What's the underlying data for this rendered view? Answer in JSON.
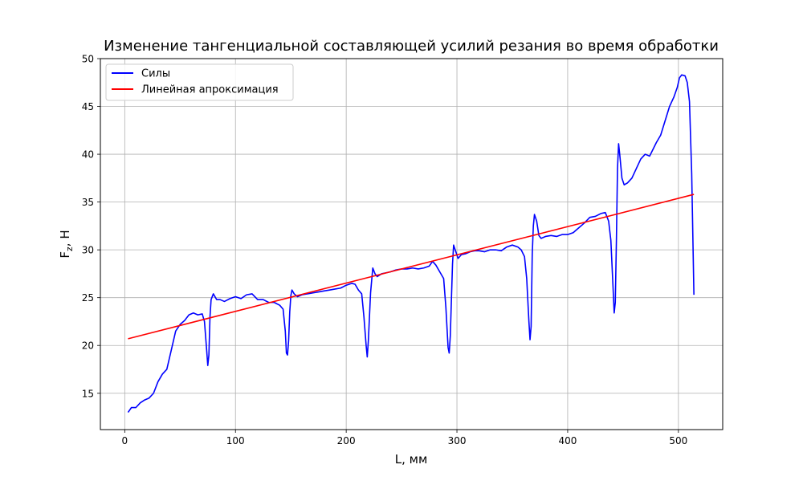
{
  "chart_data": {
    "type": "line",
    "title": "Изменение тангенциальной составляющей усилий резания во время обработки",
    "xlabel": "L, мм",
    "ylabel": {
      "base": "F",
      "sub": "z",
      "rest": ", Н"
    },
    "xlim": [
      -22,
      540
    ],
    "ylim": [
      11.2,
      50
    ],
    "xticks": [
      0,
      100,
      200,
      300,
      400,
      500
    ],
    "yticks": [
      15,
      20,
      25,
      30,
      35,
      40,
      45,
      50
    ],
    "grid": true,
    "legend_position": "top-left",
    "series": [
      {
        "name": "Силы",
        "color": "#0000ff",
        "points": [
          [
            3,
            13.0
          ],
          [
            6,
            13.5
          ],
          [
            10,
            13.5
          ],
          [
            14,
            14.0
          ],
          [
            18,
            14.3
          ],
          [
            22,
            14.5
          ],
          [
            26,
            15.0
          ],
          [
            30,
            16.2
          ],
          [
            34,
            17.0
          ],
          [
            38,
            17.5
          ],
          [
            42,
            19.5
          ],
          [
            46,
            21.5
          ],
          [
            50,
            22.2
          ],
          [
            54,
            22.6
          ],
          [
            58,
            23.2
          ],
          [
            62,
            23.4
          ],
          [
            66,
            23.2
          ],
          [
            70,
            23.3
          ],
          [
            72,
            22.5
          ],
          [
            74,
            19.5
          ],
          [
            75,
            17.9
          ],
          [
            76,
            19.0
          ],
          [
            77,
            23.0
          ],
          [
            78,
            24.8
          ],
          [
            80,
            25.4
          ],
          [
            83,
            24.8
          ],
          [
            86,
            24.8
          ],
          [
            90,
            24.6
          ],
          [
            95,
            24.9
          ],
          [
            100,
            25.1
          ],
          [
            105,
            24.9
          ],
          [
            110,
            25.3
          ],
          [
            115,
            25.4
          ],
          [
            120,
            24.8
          ],
          [
            125,
            24.8
          ],
          [
            130,
            24.5
          ],
          [
            135,
            24.5
          ],
          [
            140,
            24.2
          ],
          [
            143,
            23.8
          ],
          [
            145,
            21.5
          ],
          [
            146,
            19.2
          ],
          [
            147,
            19.0
          ],
          [
            148,
            20.5
          ],
          [
            149,
            23.5
          ],
          [
            150,
            25.2
          ],
          [
            151,
            25.8
          ],
          [
            153,
            25.4
          ],
          [
            156,
            25.1
          ],
          [
            160,
            25.3
          ],
          [
            165,
            25.4
          ],
          [
            170,
            25.5
          ],
          [
            175,
            25.6
          ],
          [
            180,
            25.7
          ],
          [
            185,
            25.8
          ],
          [
            190,
            25.9
          ],
          [
            195,
            26.0
          ],
          [
            200,
            26.3
          ],
          [
            205,
            26.5
          ],
          [
            208,
            26.4
          ],
          [
            211,
            25.8
          ],
          [
            214,
            25.4
          ],
          [
            216,
            23.0
          ],
          [
            218,
            20.0
          ],
          [
            219,
            18.8
          ],
          [
            220,
            20.5
          ],
          [
            222,
            25.5
          ],
          [
            224,
            28.1
          ],
          [
            226,
            27.5
          ],
          [
            228,
            27.2
          ],
          [
            232,
            27.5
          ],
          [
            236,
            27.6
          ],
          [
            240,
            27.7
          ],
          [
            245,
            27.9
          ],
          [
            250,
            28.0
          ],
          [
            255,
            28.0
          ],
          [
            260,
            28.1
          ],
          [
            265,
            28.0
          ],
          [
            270,
            28.1
          ],
          [
            275,
            28.3
          ],
          [
            278,
            28.8
          ],
          [
            281,
            28.4
          ],
          [
            285,
            27.6
          ],
          [
            288,
            27.0
          ],
          [
            290,
            24.0
          ],
          [
            292,
            19.8
          ],
          [
            293,
            19.2
          ],
          [
            294,
            21.0
          ],
          [
            296,
            28.5
          ],
          [
            297,
            30.5
          ],
          [
            299,
            29.8
          ],
          [
            301,
            29.1
          ],
          [
            304,
            29.5
          ],
          [
            308,
            29.6
          ],
          [
            312,
            29.8
          ],
          [
            316,
            29.9
          ],
          [
            320,
            29.9
          ],
          [
            325,
            29.8
          ],
          [
            330,
            30.0
          ],
          [
            335,
            30.0
          ],
          [
            340,
            29.9
          ],
          [
            345,
            30.3
          ],
          [
            350,
            30.5
          ],
          [
            355,
            30.3
          ],
          [
            358,
            30.0
          ],
          [
            361,
            29.3
          ],
          [
            363,
            27.0
          ],
          [
            365,
            22.5
          ],
          [
            366,
            20.6
          ],
          [
            367,
            22.0
          ],
          [
            368,
            29.5
          ],
          [
            369,
            32.5
          ],
          [
            370,
            33.7
          ],
          [
            372,
            33.0
          ],
          [
            374,
            31.5
          ],
          [
            376,
            31.2
          ],
          [
            380,
            31.4
          ],
          [
            385,
            31.5
          ],
          [
            390,
            31.4
          ],
          [
            395,
            31.6
          ],
          [
            400,
            31.6
          ],
          [
            405,
            31.8
          ],
          [
            410,
            32.3
          ],
          [
            415,
            32.8
          ],
          [
            420,
            33.4
          ],
          [
            425,
            33.5
          ],
          [
            430,
            33.8
          ],
          [
            434,
            33.9
          ],
          [
            437,
            33.0
          ],
          [
            439,
            31.0
          ],
          [
            441,
            26.0
          ],
          [
            442,
            23.4
          ],
          [
            443,
            24.5
          ],
          [
            444,
            31.0
          ],
          [
            445,
            38.5
          ],
          [
            446,
            41.1
          ],
          [
            447,
            40.0
          ],
          [
            449,
            37.5
          ],
          [
            451,
            36.8
          ],
          [
            454,
            37.0
          ],
          [
            458,
            37.5
          ],
          [
            462,
            38.5
          ],
          [
            466,
            39.5
          ],
          [
            470,
            40.0
          ],
          [
            474,
            39.8
          ],
          [
            477,
            40.5
          ],
          [
            480,
            41.2
          ],
          [
            484,
            42.0
          ],
          [
            488,
            43.5
          ],
          [
            492,
            45.0
          ],
          [
            496,
            46.0
          ],
          [
            499,
            47.0
          ],
          [
            501,
            48.0
          ],
          [
            503,
            48.3
          ],
          [
            506,
            48.2
          ],
          [
            508,
            47.5
          ],
          [
            510,
            45.5
          ],
          [
            512,
            38.0
          ],
          [
            514,
            25.3
          ]
        ]
      },
      {
        "name": "Линейная апроксимация",
        "color": "#ff0000",
        "points": [
          [
            3,
            20.7
          ],
          [
            514,
            35.8
          ]
        ]
      }
    ]
  }
}
